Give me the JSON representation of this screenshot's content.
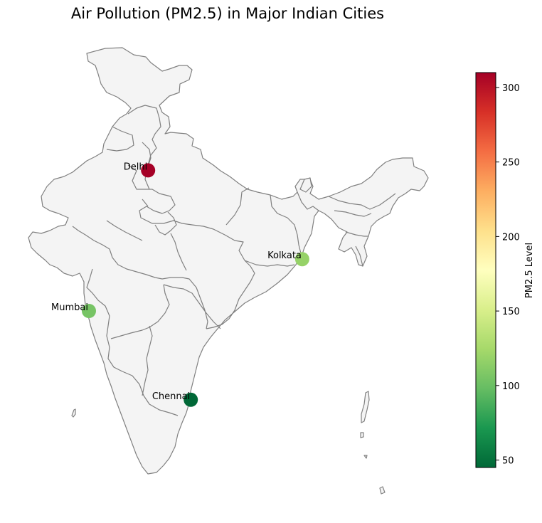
{
  "title": "Air Pollution (PM2.5) in Major Indian Cities",
  "colorbar": {
    "label": "PM2.5 Level",
    "min": 45,
    "max": 310,
    "ticks": [
      50,
      100,
      150,
      200,
      250,
      300
    ],
    "colormap": "RdYlGn_r",
    "stops": [
      "#006837",
      "#1a9850",
      "#66bd63",
      "#a6d96a",
      "#d9ef8b",
      "#ffffbf",
      "#fee08b",
      "#fdae61",
      "#f46d43",
      "#d73027",
      "#a50026"
    ]
  },
  "map": {
    "fill_color": "#f4f4f4",
    "border_color": "#808080"
  },
  "chart_data": {
    "type": "scatter",
    "title": "Air Pollution (PM2.5) in Major Indian Cities",
    "series": [
      {
        "name": "Delhi",
        "lon": 77.2,
        "lat": 28.6,
        "pm25": 310
      },
      {
        "name": "Kolkata",
        "lon": 88.4,
        "lat": 22.6,
        "pm25": 118
      },
      {
        "name": "Mumbai",
        "lon": 72.9,
        "lat": 19.1,
        "pm25": 105
      },
      {
        "name": "Chennai",
        "lon": 80.3,
        "lat": 13.1,
        "pm25": 45
      }
    ],
    "colorbar_label": "PM2.5 Level",
    "grid": false
  }
}
